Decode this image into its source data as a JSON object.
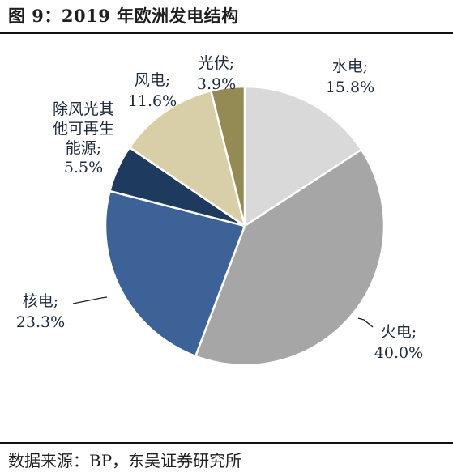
{
  "figure": {
    "title": "图 9：2019 年欧洲发电结构",
    "source": "数据来源：BP，东吴证券研究所"
  },
  "chart_data": {
    "type": "pie",
    "title": "图 9：2019 年欧洲发电结构",
    "slices": [
      {
        "name": "水电",
        "value": 15.8,
        "label_lines": [
          "水电;",
          "15.8%"
        ],
        "color": "#d9d9d9"
      },
      {
        "name": "火电",
        "value": 40.0,
        "label_lines": [
          "火电;",
          "40.0%"
        ],
        "color": "#a6a6a6"
      },
      {
        "name": "核电",
        "value": 23.3,
        "label_lines": [
          "核电;",
          "23.3%"
        ],
        "color": "#3c6297"
      },
      {
        "name": "除风光其他可再生能源",
        "value": 5.5,
        "label_lines": [
          "除风光其",
          "他可再生",
          "能源;",
          "5.5%"
        ],
        "color": "#1f3a5f"
      },
      {
        "name": "风电",
        "value": 11.6,
        "label_lines": [
          "风电;",
          "11.6%"
        ],
        "color": "#d8cfa8"
      },
      {
        "name": "光伏",
        "value": 3.9,
        "label_lines": [
          "光伏;",
          "3.9%"
        ],
        "color": "#948a54"
      }
    ]
  }
}
